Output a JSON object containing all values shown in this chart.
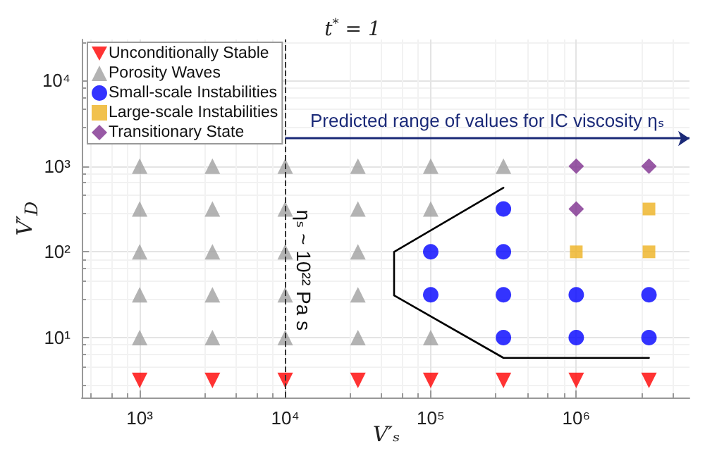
{
  "chart_data": {
    "type": "scatter",
    "title": "t$^{*}$ = 1",
    "xlabel": "V′ₛ",
    "ylabel": "V′$_{D}$",
    "log": "xy",
    "grid": true,
    "legend": "top left",
    "xlim": [
      400,
      6000000
    ],
    "ylim": [
      2,
      30000
    ],
    "xticks": [
      {
        "value": 1000,
        "label": "10³"
      },
      {
        "value": 10000,
        "label": "10⁴"
      },
      {
        "value": 100000,
        "label": "10⁵"
      },
      {
        "value": 1000000,
        "label": "10⁶"
      }
    ],
    "yticks": [
      {
        "value": 10,
        "label": "10¹"
      },
      {
        "value": 100,
        "label": "10²"
      },
      {
        "value": 1000,
        "label": "10³"
      },
      {
        "value": 10000,
        "label": "10⁴"
      }
    ],
    "series": [
      {
        "name": "Unconditionally Stable",
        "color": "#ff0000",
        "marker": "triangle-down",
        "x": [
          1000,
          3160,
          10000,
          31600,
          100000,
          316000,
          1000000,
          3160000
        ],
        "values": [
          3.16,
          3.16,
          3.16,
          3.16,
          3.16,
          3.16,
          3.16,
          3.16
        ]
      },
      {
        "name": "Porosity Waves",
        "color": "#a0a0a0",
        "marker": "triangle",
        "x": [
          1000,
          3160,
          10000,
          31600,
          100000,
          1000,
          3160,
          10000,
          31600,
          1000,
          3160,
          10000,
          31600,
          1000,
          3160,
          10000,
          31600,
          100000,
          1000,
          3160,
          10000,
          31600,
          100000,
          316000
        ],
        "values": [
          10,
          10,
          10,
          10,
          10,
          31.6,
          31.6,
          31.6,
          31.6,
          100,
          100,
          100,
          100,
          316,
          316,
          316,
          316,
          316,
          1000,
          1000,
          1000,
          1000,
          1000,
          1000
        ]
      },
      {
        "name": "Small-scale Instabilities",
        "color": "#0000ff",
        "marker": "circle",
        "x": [
          316000,
          1000000,
          3160000,
          100000,
          316000,
          1000000,
          3160000,
          100000,
          316000,
          316000
        ],
        "values": [
          10,
          10,
          10,
          31.6,
          31.6,
          31.6,
          31.6,
          100,
          100,
          316
        ]
      },
      {
        "name": "Large-scale Instabilities",
        "color": "#edb120",
        "marker": "square",
        "x": [
          1000000,
          3160000,
          3160000
        ],
        "values": [
          100,
          100,
          316
        ]
      },
      {
        "name": "Transitionary State",
        "color": "#7e2f8e",
        "marker": "diamond",
        "x": [
          1000000,
          1000000,
          3160000
        ],
        "values": [
          316,
          1000,
          1000
        ]
      },
      {
        "type": "line",
        "color": "#000000",
        "marker": "none",
        "line_style": "solid",
        "x": [
          316000,
          56000,
          56000,
          316000,
          3160000
        ],
        "values": [
          560,
          100,
          31,
          5.8,
          5.8
        ]
      }
    ],
    "ref_lines": [
      {
        "axis": "x",
        "value": 10000,
        "label": "ηₛ ~ 10²² Pa s",
        "color": "#333333",
        "line_style": "dashed"
      }
    ],
    "annotations": [
      {
        "text": "Predicted range of values for IC viscosity ηₛ",
        "x": 10000,
        "y": 2100
      }
    ]
  }
}
